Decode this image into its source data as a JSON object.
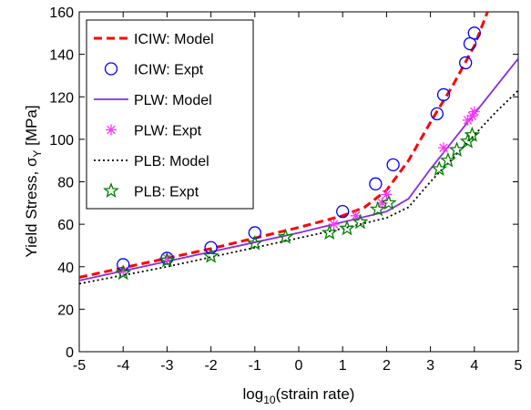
{
  "chart_data": {
    "type": "line",
    "xlabel": "log",
    "xlabel_sub": "10",
    "xlabel_rest": "(strain rate)",
    "ylabel": "Yield Stress, σ",
    "ylabel_sub": "Y",
    "ylabel_rest": " [MPa]",
    "xlim": [
      -5,
      5
    ],
    "ylim": [
      0,
      160
    ],
    "xticks": [
      -5,
      -4,
      -3,
      -2,
      -1,
      0,
      1,
      2,
      3,
      4,
      5
    ],
    "yticks": [
      0,
      20,
      40,
      60,
      80,
      100,
      120,
      140,
      160
    ],
    "grid": false,
    "legend_position": "top-left",
    "series": [
      {
        "name": "ICIW: Model",
        "kind": "line",
        "style": "dashed",
        "color": "#ff0000",
        "x": [
          -5,
          -4,
          -3,
          -2,
          -1,
          0,
          1,
          1.5,
          2,
          2.5,
          3,
          3.5,
          4,
          4.3
        ],
        "y": [
          35,
          39.5,
          44,
          48.5,
          53.5,
          58.5,
          64,
          68,
          76,
          90,
          108,
          125,
          144,
          160
        ]
      },
      {
        "name": "ICIW: Expt",
        "kind": "marker",
        "marker": "circle",
        "color": "#0000ff",
        "x": [
          -4,
          -3,
          -2,
          -1,
          1,
          1.75,
          2.15,
          3.15,
          3.3,
          3.8,
          3.9,
          4.0
        ],
        "y": [
          41,
          44,
          49,
          56,
          66,
          79,
          88,
          112,
          121,
          136,
          145,
          150
        ]
      },
      {
        "name": "PLW: Model",
        "kind": "line",
        "style": "solid",
        "color": "#8a2be2",
        "x": [
          -5,
          -4,
          -3,
          -2,
          -1,
          0,
          1,
          2,
          2.5,
          3,
          3.5,
          4,
          4.5,
          5
        ],
        "y": [
          33.5,
          38,
          42.5,
          47,
          51.5,
          56,
          61,
          66,
          72,
          86,
          99,
          112,
          125,
          138
        ]
      },
      {
        "name": "PLW: Expt",
        "kind": "marker",
        "marker": "asterisk",
        "color": "#ff33ff",
        "x": [
          -4,
          -3,
          0.8,
          1.3,
          1.9,
          2.0,
          3.3,
          3.85,
          3.95,
          4.0
        ],
        "y": [
          38,
          44,
          60,
          64,
          70,
          74,
          96,
          109,
          111,
          113
        ]
      },
      {
        "name": "PLB: Model",
        "kind": "line",
        "style": "dotted",
        "color": "#000000",
        "x": [
          -5,
          -4,
          -3,
          -2,
          -1,
          0,
          1,
          2,
          2.5,
          3,
          3.5,
          4,
          4.5,
          5
        ],
        "y": [
          32,
          36,
          40,
          44.5,
          49,
          53.5,
          58,
          63,
          68,
          80,
          91,
          102,
          113,
          123
        ]
      },
      {
        "name": "PLB: Expt",
        "kind": "marker",
        "marker": "star",
        "color": "#008000",
        "x": [
          -4,
          -3,
          -2,
          -1,
          -0.3,
          0.7,
          1.1,
          1.4,
          1.8,
          2.05,
          3.2,
          3.4,
          3.6,
          3.85,
          3.95
        ],
        "y": [
          37,
          43,
          45,
          51,
          54,
          56,
          58,
          61,
          67,
          70,
          86,
          90,
          95,
          99,
          102
        ]
      }
    ]
  }
}
